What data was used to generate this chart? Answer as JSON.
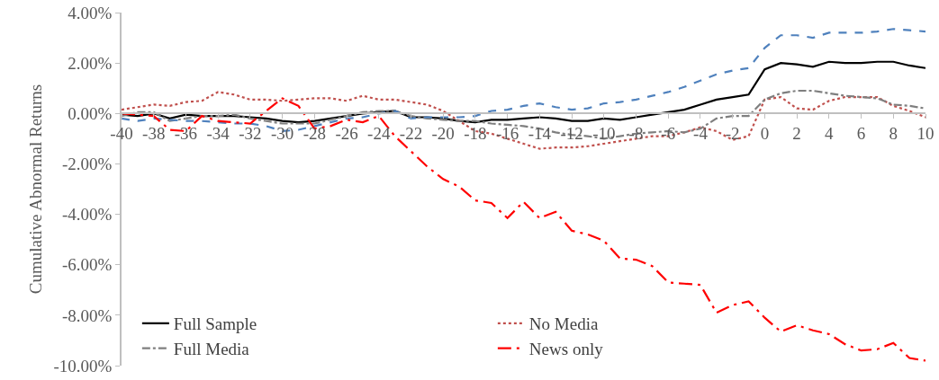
{
  "chart_data": {
    "type": "line",
    "ylabel": "Cumulative Abnormal Returns",
    "x": [
      -40,
      -39,
      -38,
      -37,
      -36,
      -35,
      -34,
      -33,
      -32,
      -31,
      -30,
      -29,
      -28,
      -27,
      -26,
      -25,
      -24,
      -23,
      -22,
      -21,
      -20,
      -19,
      -18,
      -17,
      -16,
      -15,
      -14,
      -13,
      -12,
      -11,
      -10,
      -9,
      -8,
      -7,
      -6,
      -5,
      -4,
      -3,
      -2,
      -1,
      0,
      1,
      2,
      3,
      4,
      5,
      6,
      7,
      8,
      9,
      10
    ],
    "series": [
      {
        "name": "Full Sample",
        "color": "#000000",
        "line_style": "solid",
        "values": [
          -0.05,
          -0.1,
          0,
          -0.2,
          -0.05,
          -0.1,
          -0.1,
          -0.1,
          -0.15,
          -0.2,
          -0.3,
          -0.35,
          -0.3,
          -0.2,
          -0.1,
          0,
          0.05,
          0.1,
          -0.15,
          -0.15,
          -0.2,
          -0.3,
          -0.35,
          -0.25,
          -0.25,
          -0.2,
          -0.15,
          -0.2,
          -0.3,
          -0.3,
          -0.2,
          -0.25,
          -0.15,
          -0.05,
          0.05,
          0.15,
          0.35,
          0.55,
          0.65,
          0.75,
          1.75,
          2.0,
          1.95,
          1.85,
          2.05,
          2.0,
          2.0,
          2.05,
          2.05,
          1.9,
          1.8
        ]
      },
      {
        "name": "No Media",
        "color": "#c0504d",
        "line_style": "dotted",
        "values": [
          0.15,
          0.25,
          0.35,
          0.3,
          0.45,
          0.5,
          0.85,
          0.75,
          0.55,
          0.55,
          0.5,
          0.55,
          0.6,
          0.6,
          0.5,
          0.7,
          0.55,
          0.55,
          0.45,
          0.35,
          0.1,
          -0.3,
          -0.7,
          -0.8,
          -1.0,
          -1.2,
          -1.4,
          -1.35,
          -1.35,
          -1.3,
          -1.2,
          -1.1,
          -1.0,
          -0.9,
          -0.9,
          -0.75,
          -0.55,
          -0.7,
          -1.05,
          -0.9,
          0.55,
          0.65,
          0.2,
          0.15,
          0.5,
          0.65,
          0.65,
          0.65,
          0.3,
          0.1,
          -0.15
        ]
      },
      {
        "name": "Full Media",
        "color": "#7f7f7f",
        "line_style": "dashdot",
        "values": [
          -0.1,
          0.05,
          0.05,
          -0.3,
          -0.2,
          -0.1,
          -0.1,
          -0.05,
          -0.2,
          -0.3,
          -0.4,
          -0.4,
          -0.4,
          -0.25,
          -0.1,
          0.05,
          0.1,
          0.1,
          -0.1,
          -0.2,
          -0.25,
          -0.3,
          -0.3,
          -0.4,
          -0.45,
          -0.5,
          -0.6,
          -0.75,
          -0.85,
          -0.9,
          -1.0,
          -0.9,
          -0.8,
          -0.75,
          -0.7,
          -0.75,
          -0.6,
          -0.2,
          -0.1,
          -0.1,
          0.55,
          0.8,
          0.9,
          0.9,
          0.8,
          0.7,
          0.65,
          0.6,
          0.35,
          0.3,
          0.2
        ]
      },
      {
        "color": "#4f81bd",
        "line_style": "dashed",
        "values": [
          -0.2,
          -0.3,
          -0.2,
          -0.25,
          -0.3,
          -0.3,
          -0.35,
          -0.4,
          -0.4,
          -0.5,
          -0.7,
          -0.65,
          -0.5,
          -0.35,
          -0.2,
          -0.15,
          0,
          0.1,
          -0.2,
          -0.15,
          -0.15,
          -0.15,
          -0.1,
          0.1,
          0.15,
          0.3,
          0.4,
          0.25,
          0.15,
          0.2,
          0.4,
          0.45,
          0.55,
          0.7,
          0.85,
          1.05,
          1.3,
          1.55,
          1.7,
          1.8,
          2.6,
          3.1,
          3.1,
          3.0,
          3.2,
          3.2,
          3.2,
          3.25,
          3.35,
          3.3,
          3.25
        ]
      },
      {
        "name": "News only",
        "color": "#ff0000",
        "line_style": "longdashdot",
        "values": [
          0,
          -0.05,
          -0.1,
          -0.65,
          -0.7,
          -0.1,
          -0.3,
          -0.35,
          -0.4,
          0.1,
          0.6,
          0.3,
          -0.6,
          -0.5,
          -0.25,
          -0.35,
          -0.1,
          -0.9,
          -1.5,
          -2.1,
          -2.6,
          -2.9,
          -3.45,
          -3.55,
          -4.15,
          -3.5,
          -4.15,
          -3.9,
          -4.65,
          -4.8,
          -5.05,
          -5.75,
          -5.8,
          -6.05,
          -6.7,
          -6.75,
          -6.8,
          -7.9,
          -7.6,
          -7.45,
          -8.1,
          -8.65,
          -8.4,
          -8.6,
          -8.75,
          -9.15,
          -9.4,
          -9.35,
          -9.1,
          -9.7,
          -9.8
        ]
      }
    ],
    "xlim": [
      -40,
      10
    ],
    "xticks": [
      -40,
      -38,
      -36,
      -34,
      -32,
      -30,
      -28,
      -26,
      -24,
      -22,
      -20,
      -18,
      -16,
      -14,
      -12,
      -10,
      -8,
      -6,
      -4,
      -2,
      0,
      2,
      4,
      6,
      8,
      10
    ],
    "ylim": [
      -10,
      4
    ],
    "yticks": [
      {
        "value": -10,
        "label": "-10.00%"
      },
      {
        "value": -8,
        "label": "-8.00%"
      },
      {
        "value": -6,
        "label": "-6.00%"
      },
      {
        "value": -4,
        "label": "-4.00%"
      },
      {
        "value": -2,
        "label": "-2.00%"
      },
      {
        "value": 0,
        "label": "0.00%"
      },
      {
        "value": 2,
        "label": "2.00%"
      },
      {
        "value": 4,
        "label": "4.00%"
      }
    ],
    "grid": false,
    "legend": "bottom left",
    "marker": "none"
  }
}
